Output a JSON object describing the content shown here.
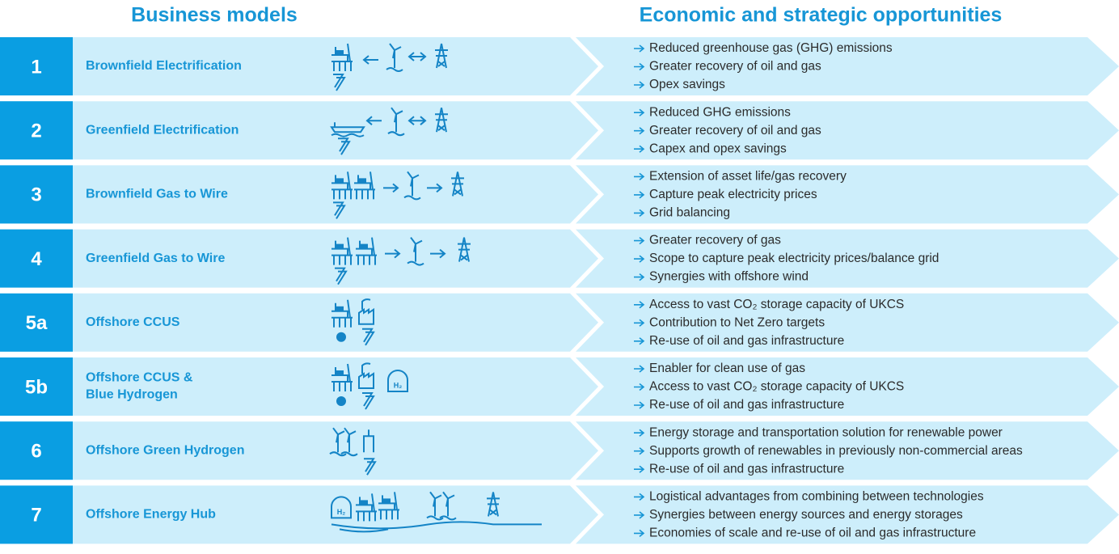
{
  "header": {
    "left_title": "Business models",
    "right_title": "Economic and strategic opportunities"
  },
  "rows": [
    {
      "number": "1",
      "name": [
        "Brownfield Electrification"
      ],
      "opportunities": [
        "Reduced greenhouse gas (GHG) emissions",
        "Greater recovery of oil and gas",
        "Opex savings"
      ]
    },
    {
      "number": "2",
      "name": [
        "Greenfield Electrification"
      ],
      "opportunities": [
        "Reduced GHG emissions",
        "Greater recovery of oil and gas",
        "Capex and opex savings"
      ]
    },
    {
      "number": "3",
      "name": [
        "Brownfield Gas to Wire"
      ],
      "opportunities": [
        "Extension of asset life/gas recovery",
        "Capture peak electricity prices",
        "Grid balancing"
      ]
    },
    {
      "number": "4",
      "name": [
        "Greenfield Gas to Wire"
      ],
      "opportunities": [
        "Greater recovery of gas",
        "Scope to capture peak electricity prices/balance grid",
        "Synergies with offshore wind"
      ]
    },
    {
      "number": "5a",
      "name": [
        "Offshore CCUS"
      ],
      "opportunities": [
        "Access to vast CO₂ storage capacity of UKCS",
        "Contribution to Net Zero targets",
        "Re-use of oil and gas infrastructure"
      ]
    },
    {
      "number": "5b",
      "name": [
        "Offshore CCUS &",
        "Blue Hydrogen"
      ],
      "icon_label": "H₂",
      "opportunities": [
        "Enabler for clean use of gas",
        "Access to vast CO₂ storage capacity of UKCS",
        "Re-use of oil and gas infrastructure"
      ]
    },
    {
      "number": "6",
      "name": [
        "Offshore Green Hydrogen"
      ],
      "opportunities": [
        "Energy storage and transportation solution for renewable power",
        "Supports growth of renewables in previously non-commercial areas",
        "Re-use of oil and gas infrastructure"
      ]
    },
    {
      "number": "7",
      "name": [
        "Offshore Energy Hub"
      ],
      "icon_label": "H₂",
      "opportunities": [
        "Logistical advantages from combining between technologies",
        "Synergies between energy sources and energy storages",
        "Economies of scale and re-use of oil and gas infrastructure"
      ]
    }
  ]
}
